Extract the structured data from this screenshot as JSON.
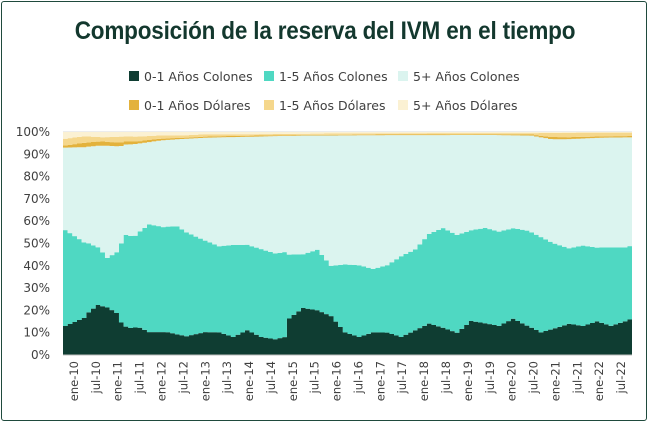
{
  "chart_data": {
    "type": "area",
    "stacking": "percent",
    "title": "Composición de la reserva del IVM en el tiempo",
    "y_ticks": [
      "0%",
      "10%",
      "20%",
      "30%",
      "40%",
      "50%",
      "60%",
      "70%",
      "80%",
      "90%",
      "100%"
    ],
    "ylim": [
      0,
      100
    ],
    "x_tick_labels": [
      "ene-10",
      "jul-10",
      "ene-11",
      "jul-11",
      "ene-12",
      "jul-12",
      "ene-13",
      "jul-13",
      "ene-14",
      "jul-14",
      "ene-15",
      "jul-15",
      "ene-16",
      "jul-16",
      "ene-17",
      "jul-17",
      "ene-18",
      "jul-18",
      "ene-19",
      "jul-19",
      "ene-20",
      "jul-20",
      "ene-21",
      "jul-21",
      "ene-22",
      "jul-22"
    ],
    "legend_position": "top",
    "series": [
      {
        "name": "0-1 Años Colones",
        "color": "#0f3d32",
        "keypoints": [
          [
            0,
            13
          ],
          [
            2,
            15
          ],
          [
            4,
            17
          ],
          [
            5,
            20
          ],
          [
            7,
            24
          ],
          [
            9,
            22
          ],
          [
            11,
            18
          ],
          [
            12,
            14
          ],
          [
            14,
            12
          ],
          [
            16,
            12
          ],
          [
            18,
            10
          ],
          [
            22,
            10
          ],
          [
            26,
            8
          ],
          [
            30,
            10
          ],
          [
            33,
            10
          ],
          [
            36,
            8
          ],
          [
            39,
            11
          ],
          [
            42,
            8
          ],
          [
            45,
            7
          ],
          [
            47,
            8
          ],
          [
            48,
            16
          ],
          [
            51,
            21
          ],
          [
            54,
            20
          ],
          [
            57,
            17
          ],
          [
            60,
            10
          ],
          [
            63,
            8
          ],
          [
            66,
            10
          ],
          [
            69,
            10
          ],
          [
            72,
            8
          ],
          [
            75,
            11
          ],
          [
            78,
            14
          ],
          [
            81,
            12
          ],
          [
            84,
            10
          ],
          [
            87,
            15
          ],
          [
            90,
            14
          ],
          [
            93,
            13
          ],
          [
            96,
            16
          ],
          [
            99,
            13
          ],
          [
            102,
            10
          ],
          [
            105,
            12
          ],
          [
            108,
            14
          ],
          [
            111,
            13
          ],
          [
            114,
            15
          ],
          [
            117,
            13
          ],
          [
            120,
            15
          ],
          [
            121,
            16
          ]
        ]
      },
      {
        "name": "1-5 Años Colones",
        "color": "#4fd8c2",
        "keypoints": [
          [
            0,
            43
          ],
          [
            3,
            37
          ],
          [
            6,
            30
          ],
          [
            9,
            23
          ],
          [
            11,
            26
          ],
          [
            13,
            42
          ],
          [
            15,
            40
          ],
          [
            18,
            47
          ],
          [
            21,
            46
          ],
          [
            24,
            47
          ],
          [
            27,
            43
          ],
          [
            30,
            40
          ],
          [
            33,
            38
          ],
          [
            36,
            41
          ],
          [
            39,
            38
          ],
          [
            42,
            39
          ],
          [
            45,
            38
          ],
          [
            47,
            38
          ],
          [
            48,
            28
          ],
          [
            51,
            24
          ],
          [
            54,
            27
          ],
          [
            57,
            22
          ],
          [
            60,
            30
          ],
          [
            63,
            32
          ],
          [
            66,
            28
          ],
          [
            69,
            30
          ],
          [
            72,
            36
          ],
          [
            75,
            36
          ],
          [
            78,
            40
          ],
          [
            81,
            44
          ],
          [
            84,
            44
          ],
          [
            87,
            40
          ],
          [
            90,
            42
          ],
          [
            93,
            42
          ],
          [
            96,
            40
          ],
          [
            99,
            42
          ],
          [
            102,
            42
          ],
          [
            105,
            38
          ],
          [
            108,
            34
          ],
          [
            111,
            36
          ],
          [
            114,
            33
          ],
          [
            117,
            35
          ],
          [
            120,
            33
          ],
          [
            121,
            33
          ]
        ]
      },
      {
        "name": "5+ Años Colones",
        "color": "#dbf4ef",
        "keypoints": [
          [
            0,
            37
          ],
          [
            3,
            42
          ],
          [
            6,
            47
          ],
          [
            9,
            52
          ],
          [
            12,
            42
          ],
          [
            15,
            40
          ],
          [
            18,
            36
          ],
          [
            21,
            38
          ],
          [
            24,
            38
          ],
          [
            27,
            41
          ],
          [
            30,
            45
          ],
          [
            33,
            48
          ],
          [
            36,
            48
          ],
          [
            39,
            48
          ],
          [
            42,
            50
          ],
          [
            45,
            52
          ],
          [
            48,
            52
          ],
          [
            51,
            53
          ],
          [
            54,
            51
          ],
          [
            57,
            57
          ],
          [
            60,
            57
          ],
          [
            63,
            58
          ],
          [
            66,
            59
          ],
          [
            69,
            58
          ],
          [
            72,
            54
          ],
          [
            75,
            51
          ],
          [
            78,
            44
          ],
          [
            81,
            41
          ],
          [
            84,
            45
          ],
          [
            87,
            42
          ],
          [
            90,
            41
          ],
          [
            93,
            43
          ],
          [
            96,
            41
          ],
          [
            99,
            42
          ],
          [
            102,
            44
          ],
          [
            105,
            47
          ],
          [
            108,
            49
          ],
          [
            111,
            48
          ],
          [
            114,
            49
          ],
          [
            117,
            49
          ],
          [
            120,
            49
          ],
          [
            121,
            49
          ]
        ]
      },
      {
        "name": "0-1 Años Dólares",
        "color": "#e3b23c",
        "keypoints": [
          [
            0,
            1
          ],
          [
            4,
            2
          ],
          [
            8,
            2
          ],
          [
            12,
            1.5
          ],
          [
            16,
            1
          ],
          [
            20,
            0.8
          ],
          [
            25,
            0.5
          ],
          [
            30,
            0.5
          ],
          [
            40,
            0.5
          ],
          [
            50,
            0.3
          ],
          [
            60,
            0.3
          ],
          [
            70,
            0.3
          ],
          [
            80,
            0.3
          ],
          [
            90,
            0.3
          ],
          [
            100,
            0.5
          ],
          [
            105,
            1
          ],
          [
            110,
            0.8
          ],
          [
            115,
            0.6
          ],
          [
            121,
            0.6
          ]
        ]
      },
      {
        "name": "1-5 Años Dólares",
        "color": "#f5d78c",
        "keypoints": [
          [
            0,
            3
          ],
          [
            4,
            3
          ],
          [
            8,
            2
          ],
          [
            12,
            2.5
          ],
          [
            16,
            2
          ],
          [
            20,
            1.5
          ],
          [
            25,
            1
          ],
          [
            30,
            1
          ],
          [
            35,
            0.8
          ],
          [
            40,
            0.6
          ],
          [
            50,
            0.5
          ],
          [
            60,
            0.6
          ],
          [
            70,
            0.5
          ],
          [
            80,
            0.6
          ],
          [
            90,
            0.5
          ],
          [
            100,
            0.6
          ],
          [
            104,
            1.8
          ],
          [
            108,
            2
          ],
          [
            112,
            1.8
          ],
          [
            116,
            1.6
          ],
          [
            121,
            1.5
          ]
        ]
      },
      {
        "name": "5+ Años Dólares",
        "color": "#fbf1d3",
        "keypoints": [
          [
            0,
            3
          ],
          [
            4,
            2
          ],
          [
            8,
            2.5
          ],
          [
            12,
            2
          ],
          [
            16,
            2
          ],
          [
            20,
            1.5
          ],
          [
            25,
            1.5
          ],
          [
            30,
            1
          ],
          [
            35,
            1
          ],
          [
            40,
            1
          ],
          [
            50,
            0.8
          ],
          [
            60,
            0.6
          ],
          [
            70,
            0.6
          ],
          [
            80,
            0.5
          ],
          [
            90,
            0.5
          ],
          [
            100,
            0.5
          ],
          [
            110,
            0.3
          ],
          [
            121,
            0.3
          ]
        ]
      }
    ]
  }
}
